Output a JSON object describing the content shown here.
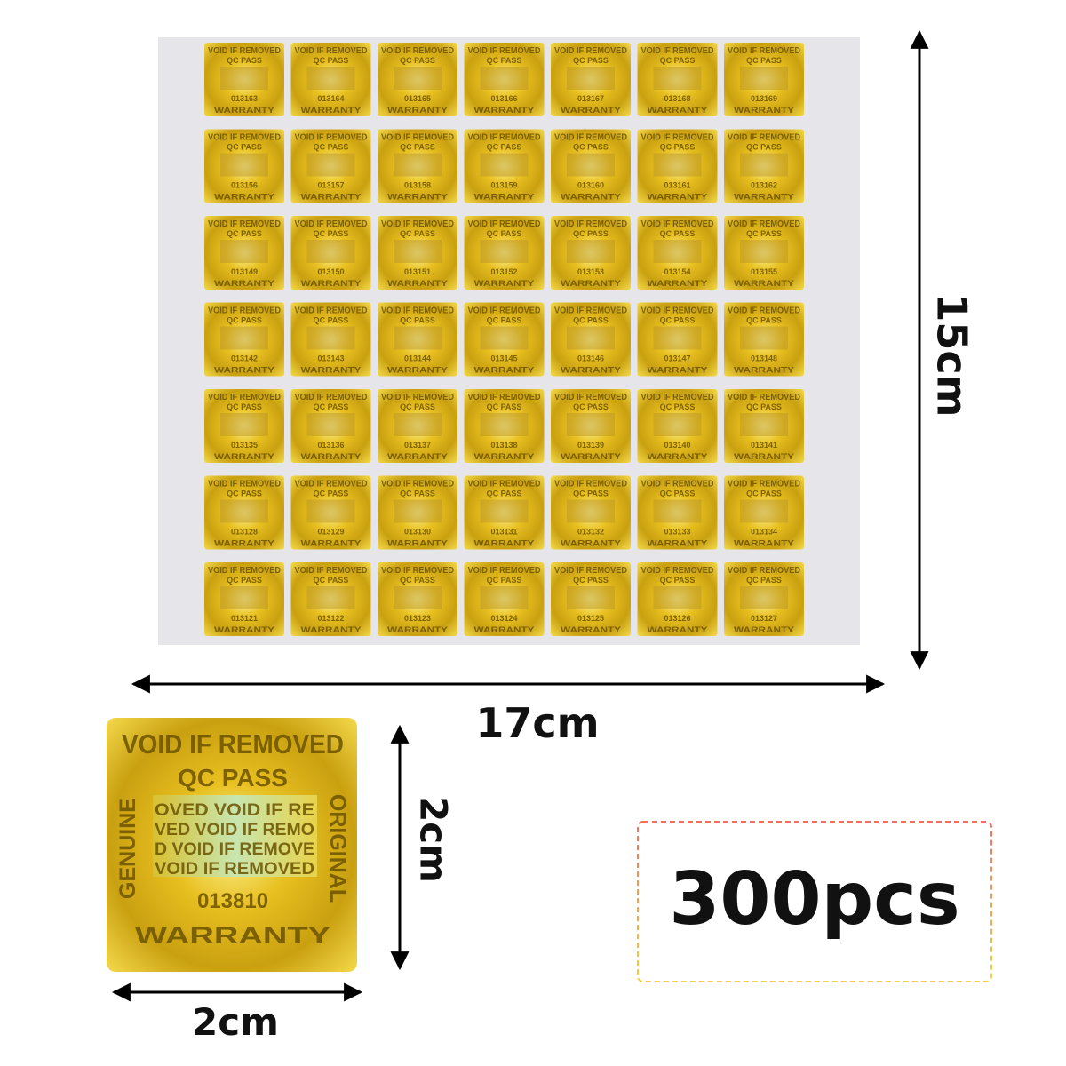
{
  "sheet": {
    "serial_rows": [
      [
        "013163",
        "013164",
        "013165",
        "013166",
        "013167",
        "013168",
        "013169"
      ],
      [
        "013156",
        "013157",
        "013158",
        "013159",
        "013160",
        "013161",
        "013162"
      ],
      [
        "013149",
        "013150",
        "013151",
        "013152",
        "013153",
        "013154",
        "013155"
      ],
      [
        "013142",
        "013143",
        "013144",
        "013145",
        "013146",
        "013147",
        "013148"
      ],
      [
        "013135",
        "013136",
        "013137",
        "013138",
        "013139",
        "013140",
        "013141"
      ],
      [
        "013128",
        "013129",
        "013130",
        "013131",
        "013132",
        "013133",
        "013134"
      ],
      [
        "013121",
        "013122",
        "013123",
        "013124",
        "013125",
        "013126",
        "013127"
      ]
    ]
  },
  "sticker": {
    "top": "VOID IF REMOVED",
    "line2": "QC PASS",
    "left": "GENUINE",
    "right": "ORIGINAL",
    "band": [
      "OVED VOID IF RE",
      "VED VOID IF REMO",
      "D VOID IF REMOVE",
      "VOID IF REMOVED"
    ],
    "serial": "013810",
    "bottom": "WARRANTY"
  },
  "dimensions": {
    "sheet_height": "15cm",
    "sheet_width": "17cm",
    "sticker_height": "2cm",
    "sticker_width": "2cm"
  },
  "quantity": "300pcs"
}
